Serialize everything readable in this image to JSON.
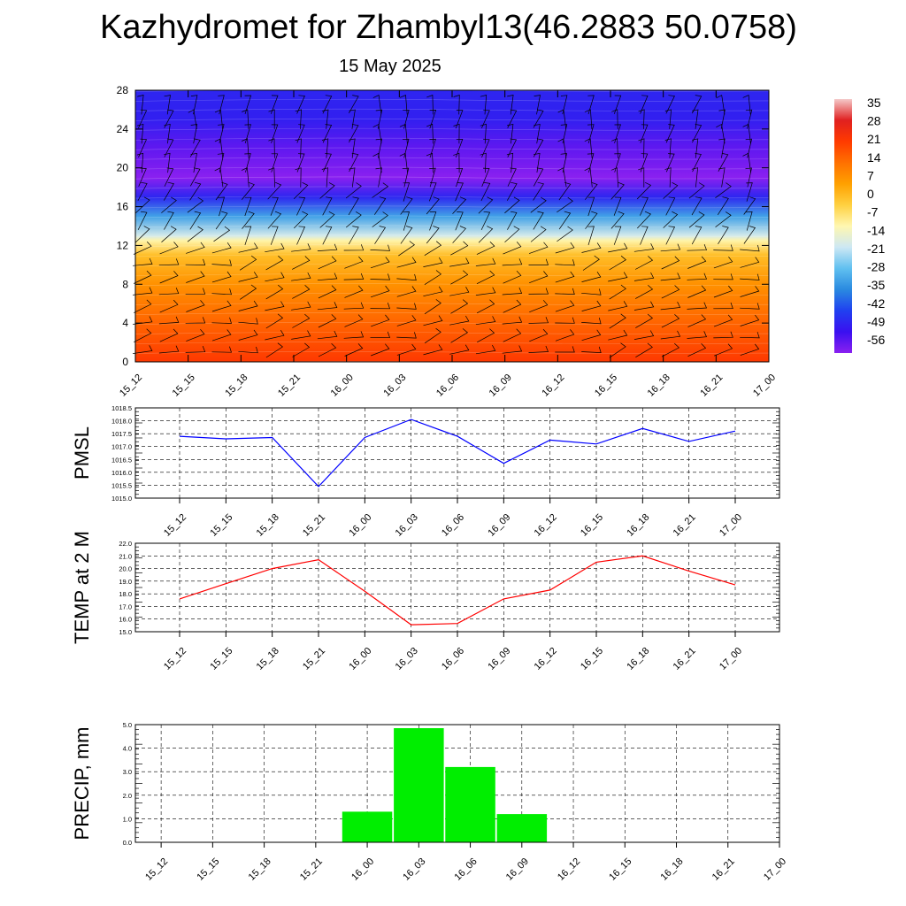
{
  "title": "Kazhydromet for Zhambyl13(46.2883 50.0758)",
  "subtitle": "15 May 2025",
  "time_labels": [
    "15_12",
    "15_15",
    "15_18",
    "15_21",
    "16_00",
    "16_03",
    "16_06",
    "16_09",
    "16_12",
    "16_15",
    "16_18",
    "16_21",
    "17_00"
  ],
  "chart_data": [
    {
      "type": "heatmap",
      "title": "Kazhydromet for Zhambyl13(46.2883 50.0758)",
      "subtitle": "15 May 2025",
      "x_categories": [
        "15_12",
        "15_15",
        "15_18",
        "15_21",
        "16_00",
        "16_03",
        "16_06",
        "16_09",
        "16_12",
        "16_15",
        "16_18",
        "16_21",
        "17_00"
      ],
      "y_ticks": [
        0,
        4,
        8,
        12,
        16,
        20,
        24,
        28
      ],
      "ylim": [
        0,
        28
      ],
      "colorbar_labels": [
        35,
        28,
        21,
        14,
        7,
        0,
        -7,
        -14,
        -21,
        -28,
        -35,
        -42,
        -49,
        -56
      ],
      "colorbar_range": [
        -56,
        35
      ],
      "colorbar_colors": [
        "#f4c8c8",
        "#e02020",
        "#ff3a00",
        "#ff7000",
        "#ffa000",
        "#ffd040",
        "#fff7b0",
        "#cde8f4",
        "#60c0f0",
        "#2a8ae0",
        "#2040f0",
        "#3a10f0",
        "#8a20f0"
      ],
      "temperature_profile": [
        {
          "level": 0,
          "value": 20
        },
        {
          "level": 4,
          "value": 14
        },
        {
          "level": 8,
          "value": 7
        },
        {
          "level": 11,
          "value": 0
        },
        {
          "level": 12.5,
          "value": -10
        },
        {
          "level": 13,
          "value": -17
        },
        {
          "level": 15,
          "value": -30
        },
        {
          "level": 17,
          "value": -45
        },
        {
          "level": 19,
          "value": -56
        },
        {
          "level": 22,
          "value": -52
        },
        {
          "level": 25,
          "value": -46
        },
        {
          "level": 28,
          "value": -45
        }
      ],
      "wind_barbs": true
    },
    {
      "type": "line",
      "ylabel": "PMSL",
      "x": [
        "15_12",
        "15_15",
        "15_18",
        "15_21",
        "16_00",
        "16_03",
        "16_06",
        "16_09",
        "16_12",
        "16_15",
        "16_18",
        "16_21",
        "17_00"
      ],
      "series": [
        {
          "values": [
            1017.4,
            1017.3,
            1017.35,
            1015.45,
            1017.35,
            1018.05,
            1017.4,
            1016.35,
            1017.25,
            1017.1,
            1017.7,
            1017.2,
            1017.6
          ],
          "color": "#0000ff"
        }
      ],
      "y_ticks": [
        "1015.0",
        "1015.5",
        "1016.0",
        "1016.5",
        "1017.0",
        "1017.5",
        "1018.0",
        "1018.5"
      ],
      "ylim": [
        1015.0,
        1018.5
      ],
      "grid": true
    },
    {
      "type": "line",
      "ylabel": "TEMP at 2 M",
      "x": [
        "15_12",
        "15_15",
        "15_18",
        "15_21",
        "16_00",
        "16_03",
        "16_06",
        "16_09",
        "16_12",
        "16_15",
        "16_18",
        "16_21",
        "17_00"
      ],
      "series": [
        {
          "values": [
            17.6,
            18.8,
            20.0,
            20.7,
            18.2,
            15.55,
            15.65,
            17.6,
            18.3,
            20.5,
            21.0,
            19.8,
            18.7
          ],
          "color": "#ff0000"
        }
      ],
      "y_ticks": [
        "15.0",
        "16.0",
        "17.0",
        "18.0",
        "19.0",
        "20.0",
        "21.0",
        "22.0"
      ],
      "ylim": [
        15.0,
        22.0
      ],
      "grid": true
    },
    {
      "type": "bar",
      "ylabel": "PRECIP, mm",
      "categories": [
        "15_12",
        "15_15",
        "15_18",
        "15_21",
        "16_00",
        "16_03",
        "16_06",
        "16_09",
        "16_12",
        "16_15",
        "16_18",
        "16_21",
        "17_00"
      ],
      "values": [
        0,
        0,
        0,
        0,
        1.3,
        4.85,
        3.2,
        1.2,
        0,
        0,
        0,
        0,
        0
      ],
      "bar_color": "#00ee00",
      "y_ticks": [
        "0.0",
        "1.0",
        "2.0",
        "3.0",
        "4.0",
        "5.0"
      ],
      "ylim": [
        0,
        5.0
      ],
      "grid": true
    }
  ]
}
